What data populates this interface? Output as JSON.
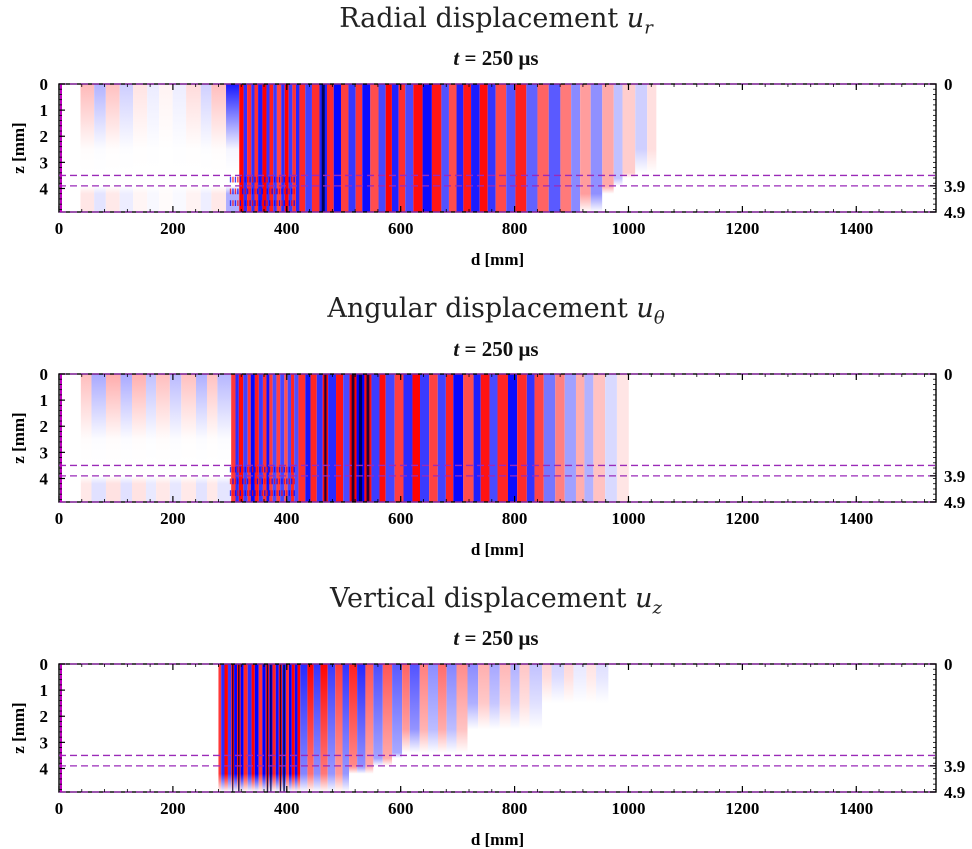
{
  "panels": [
    {
      "title": "Radial displacement",
      "symbol_base": "u",
      "symbol_sub": "r",
      "subtitle_var": "t",
      "subtitle_rest": " = 250 μs",
      "chart_data": {
        "type": "heatmap",
        "xlabel": "d [mm]",
        "ylabel": "z [mm]",
        "xlim": [
          0,
          1540
        ],
        "ylim": [
          0,
          4.9
        ],
        "y_inverted": true,
        "xticks": [
          "0",
          "200",
          "400",
          "600",
          "800",
          "1000",
          "1200",
          "1400"
        ],
        "yticks_left": [
          "0",
          "1",
          "2",
          "3",
          "4"
        ],
        "yticks_right": [
          "0",
          "3.9",
          "4.9"
        ],
        "interfaces_mm": [
          0,
          3.5,
          3.9,
          4.9
        ],
        "colormap": "blue-white-red",
        "field_extent_mm": [
          0,
          1060
        ]
      }
    },
    {
      "title": "Angular displacement",
      "symbol_base": "u",
      "symbol_sub": "θ",
      "subtitle_var": "t",
      "subtitle_rest": " = 250 μs",
      "chart_data": {
        "type": "heatmap",
        "xlabel": "d [mm]",
        "ylabel": "z [mm]",
        "xlim": [
          0,
          1540
        ],
        "ylim": [
          0,
          4.9
        ],
        "y_inverted": true,
        "xticks": [
          "0",
          "200",
          "400",
          "600",
          "800",
          "1000",
          "1200",
          "1400"
        ],
        "yticks_left": [
          "0",
          "1",
          "2",
          "3",
          "4"
        ],
        "yticks_right": [
          "0",
          "3.9",
          "4.9"
        ],
        "interfaces_mm": [
          0,
          3.5,
          3.9,
          4.9
        ],
        "colormap": "blue-white-red",
        "field_extent_mm": [
          0,
          1000
        ]
      }
    },
    {
      "title": "Vertical displacement",
      "symbol_base": "u",
      "symbol_sub": "z",
      "subtitle_var": "t",
      "subtitle_rest": " = 250 μs",
      "chart_data": {
        "type": "heatmap",
        "xlabel": "d [mm]",
        "ylabel": "z [mm]",
        "xlim": [
          0,
          1540
        ],
        "ylim": [
          0,
          4.9
        ],
        "y_inverted": true,
        "xticks": [
          "0",
          "200",
          "400",
          "600",
          "800",
          "1000",
          "1200",
          "1400"
        ],
        "yticks_left": [
          "0",
          "1",
          "2",
          "3",
          "4"
        ],
        "yticks_right": [
          "0",
          "3.9",
          "4.9"
        ],
        "interfaces_mm": [
          0,
          3.5,
          3.9,
          4.9
        ],
        "colormap": "blue-white-red",
        "field_extent_mm": [
          280,
          960
        ]
      }
    }
  ],
  "colors": {
    "positive": "#ff0000",
    "negative": "#0000ff",
    "core": "#00003a",
    "interface_line": "#9a2ab8"
  }
}
